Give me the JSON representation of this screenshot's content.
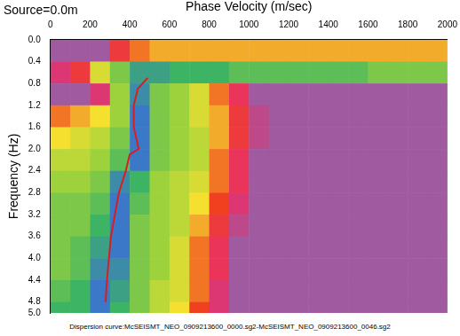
{
  "chart_data": {
    "type": "heatmap",
    "title": "Source=0.0m",
    "x_label": "Phase Velocity (m/sec)",
    "y_label": "Frequency (Hz)",
    "caption": "Dispersion curve:McSEISMT_NEO_0909213600_0000.sg2-McSEISMT_NEO_0909213600_0046.sg2",
    "xlim": [
      0,
      2000
    ],
    "xticks": [
      0,
      200,
      400,
      600,
      800,
      1000,
      1200,
      1400,
      1600,
      1800,
      2000
    ],
    "ylim": [
      0,
      5
    ],
    "yticks": [
      {
        "value": 0,
        "label": "0.0"
      },
      {
        "value": 0.4,
        "label": "0.4"
      },
      {
        "value": 0.8,
        "label": "0.8"
      },
      {
        "value": 1.2,
        "label": "1.2"
      },
      {
        "value": 1.6,
        "label": "1.6"
      },
      {
        "value": 2.0,
        "label": "2.0"
      },
      {
        "value": 2.4,
        "label": "2.4"
      },
      {
        "value": 2.8,
        "label": "2.8"
      },
      {
        "value": 3.2,
        "label": "3.2"
      },
      {
        "value": 3.6,
        "label": "3.6"
      },
      {
        "value": 4.0,
        "label": "4.0"
      },
      {
        "value": 4.4,
        "label": "4.4"
      },
      {
        "value": 4.8,
        "label": "4.8"
      },
      {
        "value": 5.0,
        "label": "5.0"
      }
    ],
    "grid": false,
    "cells": {
      "x_edges": [
        0,
        100,
        200,
        300,
        400,
        500,
        600,
        700,
        800,
        900,
        1000,
        1100,
        1200,
        1300,
        1400,
        1500,
        1600,
        1700,
        1800,
        1900,
        2000
      ],
      "y_edges": [
        0,
        0.4,
        0.8,
        1.2,
        1.6,
        2.0,
        2.4,
        2.8,
        3.2,
        3.6,
        4.0,
        4.4,
        4.8,
        5.0
      ],
      "values": [
        [
          0,
          0,
          0,
          0.2,
          0.3,
          0.35,
          0.35,
          0.35,
          0.35,
          0.35,
          0.35,
          0.35,
          0.35,
          0.35,
          0.35,
          0.35,
          0.35,
          0.35,
          0.35,
          0.35
        ],
        [
          0.1,
          0.2,
          0.45,
          0.6,
          0.75,
          0.75,
          0.7,
          0.7,
          0.7,
          0.65,
          0.65,
          0.65,
          0.65,
          0.65,
          0.65,
          0.65,
          0.6,
          0.6,
          0.6,
          0.6
        ],
        [
          0,
          0,
          0.1,
          0.55,
          0.8,
          0.6,
          0.55,
          0.45,
          0.3,
          0.15,
          0,
          0,
          0,
          0,
          0,
          0,
          0,
          0,
          0,
          0
        ],
        [
          0.3,
          0.35,
          0.4,
          0.55,
          0.85,
          0.6,
          0.55,
          0.45,
          0.35,
          0.2,
          0.05,
          0,
          0,
          0,
          0,
          0,
          0,
          0,
          0,
          0
        ],
        [
          0.4,
          0.45,
          0.5,
          0.6,
          0.85,
          0.6,
          0.55,
          0.5,
          0.35,
          0.2,
          0.05,
          0,
          0,
          0,
          0,
          0,
          0,
          0,
          0,
          0
        ],
        [
          0.5,
          0.5,
          0.55,
          0.65,
          0.85,
          0.6,
          0.55,
          0.5,
          0.3,
          0.15,
          0,
          0,
          0,
          0,
          0,
          0,
          0,
          0,
          0,
          0
        ],
        [
          0.55,
          0.55,
          0.6,
          0.8,
          0.7,
          0.55,
          0.5,
          0.45,
          0.3,
          0.15,
          0,
          0,
          0,
          0,
          0,
          0,
          0,
          0,
          0,
          0
        ],
        [
          0.6,
          0.6,
          0.65,
          0.85,
          0.65,
          0.55,
          0.5,
          0.4,
          0.25,
          0.1,
          0,
          0,
          0,
          0,
          0,
          0,
          0,
          0,
          0,
          0
        ],
        [
          0.6,
          0.6,
          0.7,
          0.85,
          0.6,
          0.55,
          0.5,
          0.35,
          0.2,
          0.05,
          0,
          0,
          0,
          0,
          0,
          0,
          0,
          0,
          0,
          0
        ],
        [
          0.6,
          0.65,
          0.75,
          0.85,
          0.6,
          0.55,
          0.45,
          0.3,
          0.15,
          0,
          0,
          0,
          0,
          0,
          0,
          0,
          0,
          0,
          0,
          0
        ],
        [
          0.6,
          0.65,
          0.8,
          0.8,
          0.6,
          0.55,
          0.45,
          0.3,
          0.15,
          0,
          0,
          0,
          0,
          0,
          0,
          0,
          0,
          0,
          0,
          0
        ],
        [
          0.65,
          0.7,
          0.85,
          0.75,
          0.6,
          0.5,
          0.45,
          0.3,
          0.1,
          0,
          0,
          0,
          0,
          0,
          0,
          0,
          0,
          0,
          0,
          0
        ],
        [
          0.7,
          0.7,
          0.85,
          0.7,
          0.6,
          0.5,
          0.4,
          0.25,
          0.1,
          0,
          0,
          0,
          0,
          0,
          0,
          0,
          0,
          0,
          0,
          0
        ]
      ]
    },
    "curve": {
      "color": "#d81e1e",
      "line_style": "solid",
      "marker": "none",
      "frequency": [
        0.7,
        0.9,
        1.2,
        1.6,
        2.0,
        2.1,
        2.4,
        2.8,
        3.2,
        3.6,
        4.0,
        4.4,
        4.8
      ],
      "velocity": [
        490,
        440,
        420,
        420,
        445,
        400,
        380,
        345,
        325,
        305,
        295,
        285,
        278
      ]
    }
  }
}
